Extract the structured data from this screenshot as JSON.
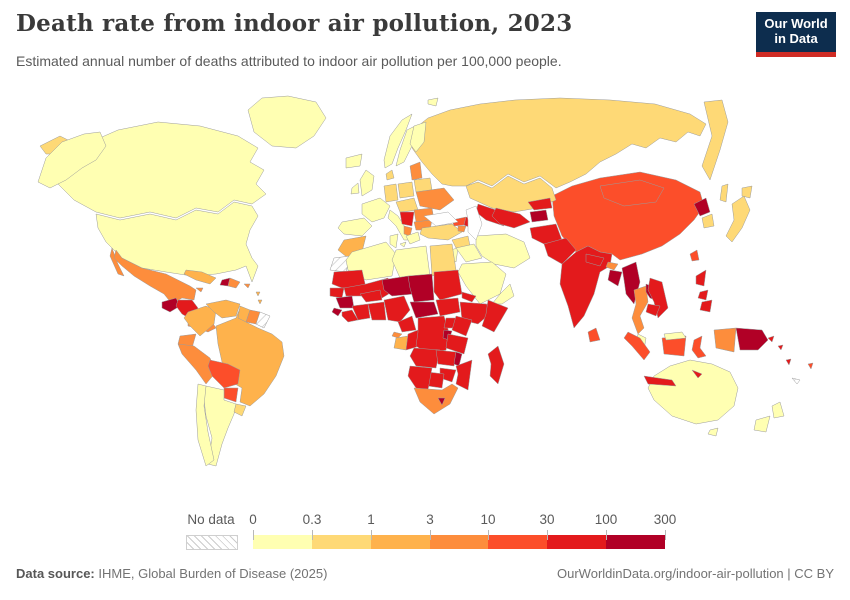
{
  "header": {
    "title": "Death rate from indoor air pollution, 2023",
    "subtitle": "Estimated annual number of deaths attributed to indoor air pollution per 100,000 people."
  },
  "logo": {
    "line1": "Our World",
    "line2": "in Data",
    "bg": "#0d2d4e",
    "accent": "#cf2b24"
  },
  "legend": {
    "no_data_label": "No data",
    "ticks": [
      "0",
      "0.3",
      "1",
      "3",
      "10",
      "30",
      "100",
      "300"
    ]
  },
  "footer": {
    "source_label": "Data source:",
    "source_value": " IHME, Global Burden of Disease (2025)",
    "right_text": "OurWorldinData.org/indoor-air-pollution | CC BY"
  },
  "chart_data": {
    "type": "heatmap",
    "subtype": "choropleth-world-map",
    "title": "Death rate from indoor air pollution, 2023",
    "unit": "deaths per 100,000 people",
    "year": "2023",
    "legend_position": "bottom",
    "bins": [
      {
        "range": "0-0.3",
        "color": "#ffffb2"
      },
      {
        "range": "0.3-1",
        "color": "#fed976"
      },
      {
        "range": "1-3",
        "color": "#feb24c"
      },
      {
        "range": "3-10",
        "color": "#fd8d3c"
      },
      {
        "range": "10-30",
        "color": "#fc4e2a"
      },
      {
        "range": "30-100",
        "color": "#e31a1c"
      },
      {
        "range": "100-300",
        "color": "#b10026"
      }
    ],
    "no_data_color": "hatch",
    "countries": {
      "canada": "0-0.3",
      "usa": "0-0.3",
      "usa-alaska": "0-0.3",
      "greenland": "0-0.3",
      "mexico": "3-10",
      "baja": "3-10",
      "guatemala": "100-300",
      "honduras-nicaragua": "30-100",
      "costa-rica-panama": "3-10",
      "cuba": "1-3",
      "haiti": "100-300",
      "dominican-republic": "3-10",
      "jamaica": "3-10",
      "puerto-rico": "3-10",
      "antilles-1": "1-3",
      "antilles-2": "1-3",
      "colombia": "1-3",
      "venezuela": "1-3",
      "guyana": "1-3",
      "suriname": "3-10",
      "french-guiana": "no-data",
      "brazil": "1-3",
      "ecuador": "3-10",
      "peru": "3-10",
      "bolivia": "10-30",
      "paraguay": "10-30",
      "uruguay": "0.3-1",
      "chile": "0-0.3",
      "argentina": "0-0.3",
      "iceland": "0-0.3",
      "uk": "0-0.3",
      "ireland": "0-0.3",
      "norway": "0-0.3",
      "sweden": "0-0.3",
      "finland": "0-0.3",
      "denmark": "0.3-1",
      "germany": "0.3-1",
      "france": "0-0.3",
      "spain": "0-0.3",
      "italy": "0-0.3",
      "sicily": "0-0.3",
      "poland": "0.3-1",
      "central-europe": "0.3-1",
      "baltics": "3-10",
      "belarus": "0.3-1",
      "ukraine": "3-10",
      "romania": "3-10",
      "bulgaria": "3-10",
      "serbia-bosnia": "30-100",
      "albania-macedonia": "3-10",
      "greece": "0-0.3",
      "turkey": "0.3-1",
      "svalbard": "0-0.3",
      "russia": "0.3-1",
      "russia-east": "0.3-1",
      "sakhalin": "0.3-1",
      "chukotka": "0.3-1",
      "kazakhstan": "0.3-1",
      "turkmenistan": "30-100",
      "uzbekistan": "30-100",
      "kyrgyzstan": "30-100",
      "tajikistan": "100-300",
      "georgia": "10-30",
      "azerbaijan": "30-100",
      "armenia": "3-10",
      "syria": "0.3-1",
      "iraq": "0-0.3",
      "iran": "0-0.3",
      "jordan-israel": "0-0.3",
      "saudi-arabia": "0-0.3",
      "yemen": "30-100",
      "oman": "0-0.3",
      "morocco": "1-3",
      "western-sahara": "no-data",
      "algeria": "0-0.3",
      "tunisia": "0-0.3",
      "libya": "0-0.3",
      "egypt": "0.3-1",
      "mauritania": "30-100",
      "senegal": "30-100",
      "guinea": "100-300",
      "sierra-leone": "100-300",
      "liberia": "30-100",
      "ivory-coast": "30-100",
      "burkina-faso": "30-100",
      "ghana": "30-100",
      "mali": "30-100",
      "niger": "100-300",
      "nigeria": "30-100",
      "chad": "100-300",
      "sudan": "30-100",
      "south-sudan": "30-100",
      "eritrea": "30-100",
      "ethiopia": "30-100",
      "somalia": "30-100",
      "central-african-republic": "100-300",
      "cameroon": "30-100",
      "equatorial-guinea": "3-10",
      "gabon": "1-3",
      "congo": "30-100",
      "drc": "30-100",
      "uganda": "30-100",
      "kenya": "30-100",
      "rwanda-burundi": "100-300",
      "tanzania": "30-100",
      "angola": "30-100",
      "zambia": "30-100",
      "malawi": "100-300",
      "mozambique": "30-100",
      "zimbabwe": "30-100",
      "botswana": "30-100",
      "namibia": "30-100",
      "south-africa": "3-10",
      "lesotho": "100-300",
      "madagascar": "30-100",
      "afghanistan": "30-100",
      "pakistan": "30-100",
      "india": "30-100",
      "nepal": "30-100",
      "bhutan": "3-10",
      "bangladesh": "100-300",
      "sri-lanka": "10-30",
      "myanmar": "100-300",
      "thailand": "3-10",
      "laos": "100-300",
      "cambodia": "30-100",
      "vietnam": "30-100",
      "china": "10-30",
      "mongolia": "10-30",
      "north-korea": "100-300",
      "south-korea": "0.3-1",
      "japan": "0.3-1",
      "japan-hokkaido": "0.3-1",
      "taiwan": "10-30",
      "philippines-luzon": "30-100",
      "philippines-visayas": "30-100",
      "philippines-mindanao": "30-100",
      "malaysia": "0-0.3",
      "malaysia-borneo": "0-0.3",
      "indonesia-sumatra": "10-30",
      "indonesia-kalimantan": "10-30",
      "indonesia-java": "30-100",
      "indonesia-sulawesi": "10-30",
      "indonesia-papua": "3-10",
      "timor": "30-100",
      "papua-new-guinea": "100-300",
      "australia": "0-0.3",
      "tasmania": "0-0.3",
      "new-zealand-north": "0-0.3",
      "new-zealand-south": "0-0.3",
      "solomon-1": "30-100",
      "solomon-2": "30-100",
      "vanuatu": "30-100",
      "fiji": "10-30",
      "new-caledonia": "no-data"
    }
  }
}
